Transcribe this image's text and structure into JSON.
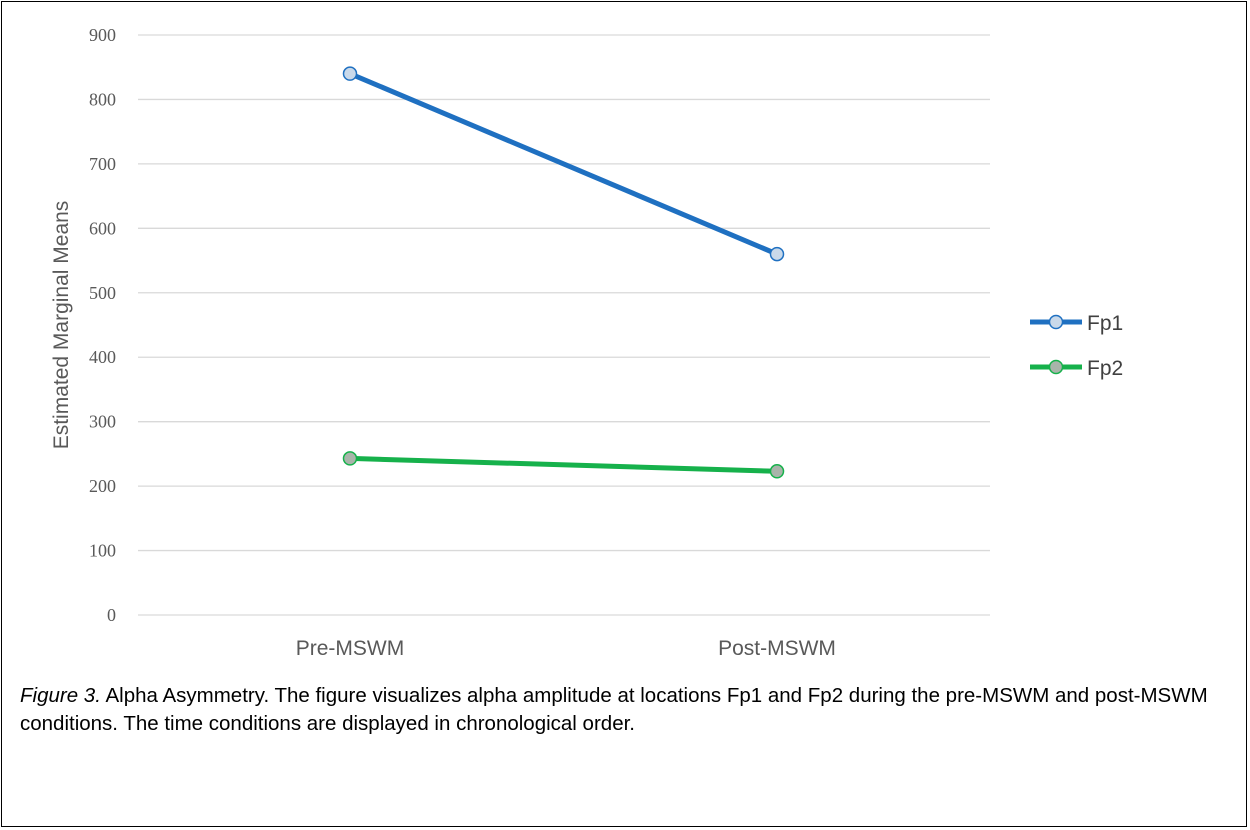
{
  "chart_data": {
    "type": "line",
    "categories": [
      "Pre-MSWM",
      "Post-MSWM"
    ],
    "series": [
      {
        "name": "Fp1",
        "values": [
          840,
          560
        ],
        "color": "#1f70c1",
        "marker_fill": "#c9d9ea"
      },
      {
        "name": "Fp2",
        "values": [
          243,
          223
        ],
        "color": "#16b14b",
        "marker_fill": "#a9b4aa"
      }
    ],
    "xlabel": "",
    "ylabel": "Estimated Marginal Means",
    "ylim": [
      0,
      900
    ],
    "yticks": [
      0,
      100,
      200,
      300,
      400,
      500,
      600,
      700,
      800,
      900
    ],
    "grid": true,
    "legend_position": "right"
  },
  "caption": {
    "label": "Figure 3.",
    "text": " Alpha Asymmetry. The figure visualizes alpha amplitude at locations Fp1 and Fp2 during the pre-MSWM and post-MSWM conditions. The time conditions are displayed in chronological order."
  },
  "colors": {
    "grid": "#d9d9d9",
    "text": "#595959"
  }
}
